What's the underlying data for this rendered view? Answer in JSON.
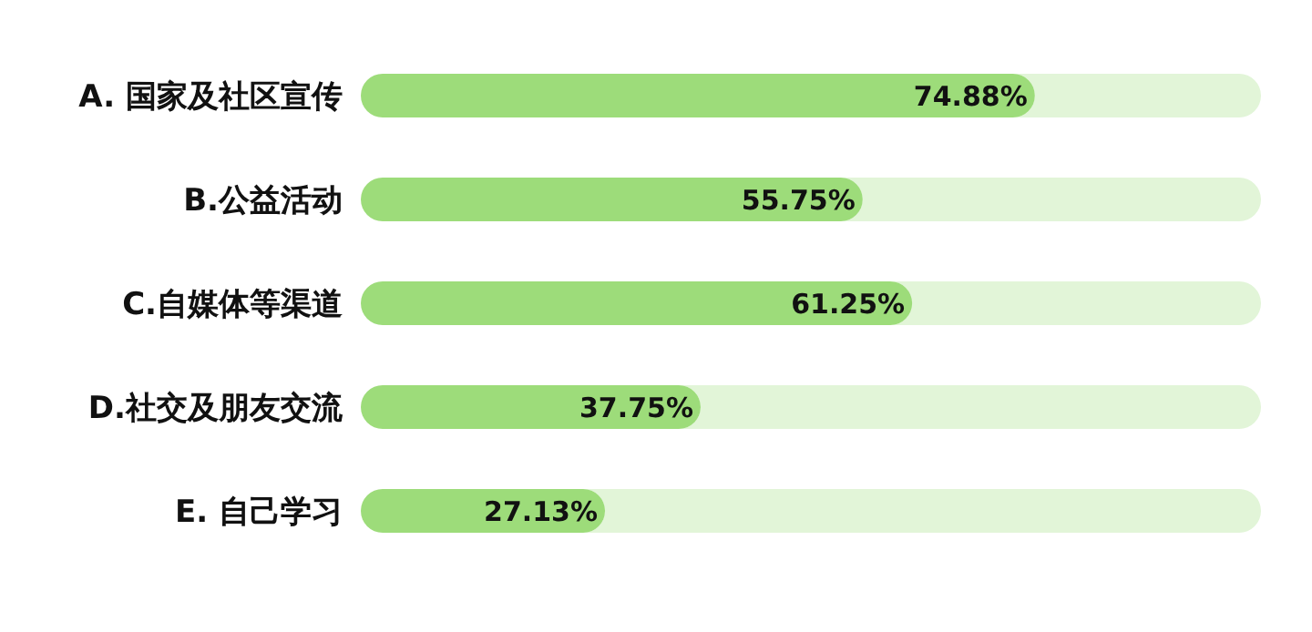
{
  "chart_data": {
    "type": "bar",
    "orientation": "horizontal",
    "categories": [
      "A. 国家及社区宣传",
      "B.公益活动",
      "C.自媒体等渠道",
      "D.社交及朋友交流",
      "E. 自己学习"
    ],
    "values": [
      74.88,
      55.75,
      61.25,
      37.75,
      27.13
    ],
    "value_labels": [
      "74.88%",
      "55.75%",
      "61.25%",
      "37.75%",
      "27.13%"
    ],
    "color": "#9ddc7a",
    "xlim": [
      0,
      100
    ],
    "tick_labels": "y"
  }
}
